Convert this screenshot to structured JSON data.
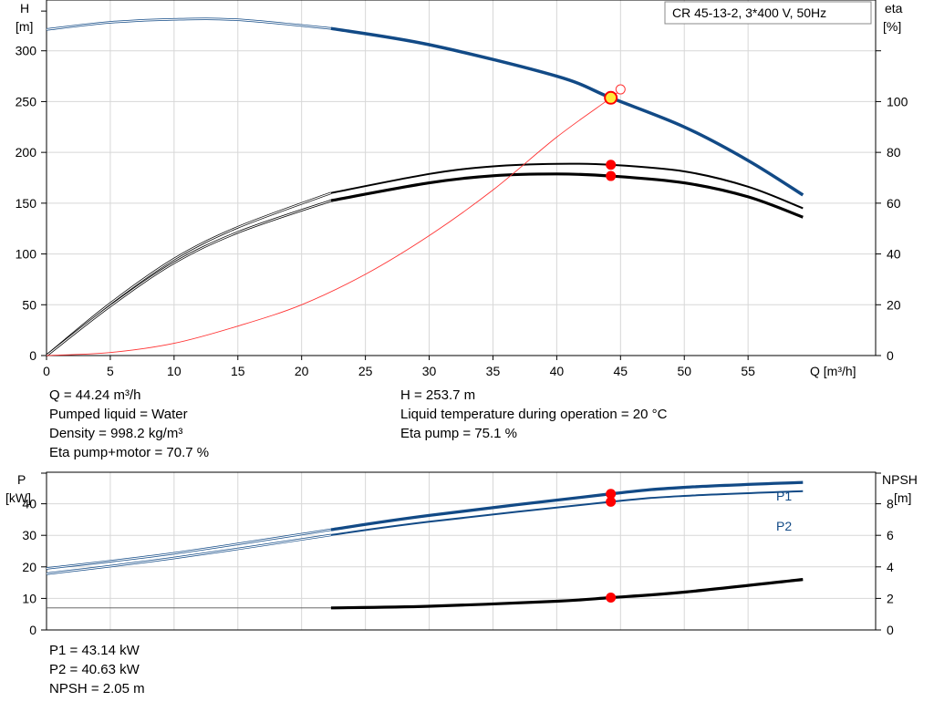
{
  "title": "CR 45-13-2, 3*400 V, 50Hz",
  "colors": {
    "head": "#124a86",
    "eta": "#000000",
    "eta_pump_motor": "#000000",
    "system": "#ff3333",
    "power": "#124a86",
    "npsh": "#000000",
    "grid": "#d7d7d7",
    "point_fill": "#ff0000",
    "intersection_fill": "#ffeb3b"
  },
  "info_top": {
    "left": [
      "Q = 44.24 m³/h",
      "Pumped liquid = Water",
      "Density = 998.2 kg/m³",
      "Eta pump+motor = 70.7 %"
    ],
    "right": [
      "H = 253.7 m",
      "Liquid temperature during operation = 20 °C",
      "Eta pump = 75.1 %"
    ]
  },
  "info_bottom": [
    "P1 = 43.14 kW",
    "P2 = 40.63 kW",
    "NPSH = 2.05 m"
  ],
  "chart_data": [
    {
      "type": "line",
      "xlabel": "Q [m³/h]",
      "ylabel": [
        "H",
        "[m]"
      ],
      "y2label": [
        "eta",
        "[%]"
      ],
      "xlim": [
        0,
        65
      ],
      "ylim": [
        0,
        350
      ],
      "y2lim": [
        0,
        140
      ],
      "xticks": [
        0,
        5,
        10,
        15,
        20,
        25,
        30,
        35,
        40,
        45,
        50,
        55
      ],
      "yticks": [
        0,
        50,
        100,
        150,
        200,
        250,
        300
      ],
      "y2ticks": [
        0,
        20,
        40,
        60,
        80,
        100
      ],
      "grid": true,
      "operating_range_start": 22.3,
      "series": [
        {
          "id": "head",
          "axis": "left",
          "x": [
            0,
            5,
            10,
            15,
            22.3,
            30,
            40,
            44.24,
            50,
            55,
            59.3
          ],
          "y": [
            321,
            328,
            331,
            330.5,
            322,
            306,
            275,
            253.7,
            225,
            192,
            158
          ]
        },
        {
          "id": "eta_pump",
          "axis": "right",
          "x": [
            0,
            5,
            10,
            15,
            22.3,
            30,
            35,
            40,
            44.24,
            50,
            55,
            59.3
          ],
          "y": [
            0,
            20.5,
            38,
            50.5,
            64,
            71.5,
            74.5,
            75.5,
            75.1,
            72.5,
            66.5,
            58
          ]
        },
        {
          "id": "eta_pump_motor",
          "axis": "right",
          "x": [
            0,
            5,
            10,
            15,
            22.3,
            30,
            35,
            40,
            44.24,
            50,
            55,
            59.3
          ],
          "y": [
            0,
            19.5,
            36.5,
            48.5,
            61,
            68,
            70.8,
            71.5,
            70.7,
            68,
            62.5,
            54.5
          ]
        },
        {
          "id": "system_curve",
          "axis": "left",
          "x": [
            0,
            5,
            10,
            15,
            20,
            25,
            30,
            35,
            40,
            44.24,
            45
          ],
          "y": [
            0,
            3,
            12,
            29,
            50,
            80,
            118,
            163,
            215,
            253.7,
            262
          ]
        }
      ],
      "points": [
        {
          "series": "head",
          "x": 44.24,
          "y": 253.7
        },
        {
          "series": "eta_pump",
          "x": 44.24,
          "y": 75.1
        },
        {
          "series": "eta_pump_motor",
          "x": 44.24,
          "y": 70.7
        }
      ]
    },
    {
      "type": "line",
      "ylabel": [
        "P",
        "[kW]"
      ],
      "y2label": [
        "NPSH",
        "[m]"
      ],
      "xlim": [
        0,
        65
      ],
      "ylim": [
        0,
        50
      ],
      "y2lim": [
        0,
        10
      ],
      "yticks": [
        0,
        10,
        20,
        30,
        40
      ],
      "y2ticks": [
        0,
        2,
        4,
        6,
        8
      ],
      "grid": true,
      "series": [
        {
          "id": "P1",
          "name": "P1",
          "axis": "left",
          "x": [
            0,
            10,
            22.3,
            30,
            44.24,
            50,
            59.3
          ],
          "y": [
            19.5,
            24.3,
            31.8,
            36.3,
            43.14,
            45.2,
            46.8
          ]
        },
        {
          "id": "P2",
          "name": "P2",
          "axis": "left",
          "x": [
            0,
            10,
            22.3,
            30,
            44.24,
            50,
            59.3
          ],
          "y": [
            17.8,
            22.8,
            30.1,
            34.3,
            40.63,
            42.5,
            44.0
          ]
        },
        {
          "id": "npsh",
          "axis": "right",
          "x": [
            0,
            22.3,
            30,
            40,
            44.24,
            50,
            59.3
          ],
          "y": [
            1.4,
            1.4,
            1.5,
            1.82,
            2.05,
            2.4,
            3.2
          ]
        }
      ],
      "points": [
        {
          "series": "P1",
          "x": 44.24,
          "y": 43.14
        },
        {
          "series": "P2",
          "x": 44.24,
          "y": 40.63
        },
        {
          "series": "npsh",
          "x": 44.24,
          "y": 2.05
        }
      ]
    }
  ]
}
